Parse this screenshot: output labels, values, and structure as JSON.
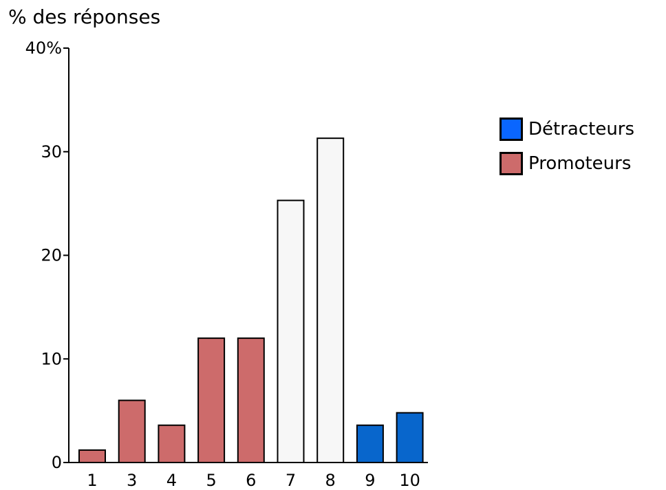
{
  "chart_data": {
    "type": "bar",
    "ylabel": "% des réponses",
    "categories": [
      "1",
      "3",
      "4",
      "5",
      "6",
      "7",
      "8",
      "9",
      "10"
    ],
    "values": [
      1.2,
      6.0,
      3.6,
      12.0,
      12.0,
      25.3,
      31.3,
      3.6,
      4.8
    ],
    "group": [
      "promoteurs",
      "promoteurs",
      "promoteurs",
      "promoteurs",
      "promoteurs",
      "neutral",
      "neutral",
      "detracteurs",
      "detracteurs"
    ],
    "ylim": [
      0,
      40
    ],
    "yticks": [
      "0",
      "10",
      "20",
      "30",
      "40%"
    ],
    "ytick_values": [
      0,
      10,
      20,
      30,
      40
    ],
    "grid": false,
    "legend_position": "right",
    "colors": {
      "promoteurs": "#cd6b6b",
      "detracteurs": "#0866cc",
      "neutral": "#f7f7f7"
    },
    "legend": [
      {
        "label": "Détracteurs",
        "color": "#0a66ff"
      },
      {
        "label": "Promoteurs",
        "color": "#cd6b6b"
      }
    ]
  }
}
